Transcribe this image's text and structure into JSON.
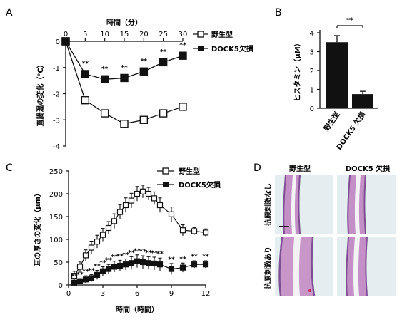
{
  "panels": {
    "A": "A",
    "B": "B",
    "C": "C",
    "D": "D"
  },
  "legend": {
    "wt": "野生型",
    "ko": "DOCK5欠損"
  },
  "colors": {
    "ink": "#111111",
    "tissue_bg": "#dfe9ec",
    "tissue_pink": "#c795c6",
    "tissue_purple": "#8b5a9a",
    "tissue_white": "#eef1f4"
  },
  "chart_data": [
    {
      "id": "A",
      "type": "line",
      "title": "時間（分）",
      "xlabel": "時間（分）",
      "ylabel": "直腸温の変化（℃）",
      "x_ticks": [
        0,
        5,
        10,
        15,
        20,
        25,
        30
      ],
      "y_ticks": [
        0,
        -1,
        -2,
        -3,
        -4
      ],
      "xlim": [
        0,
        30
      ],
      "ylim": [
        -4,
        0
      ],
      "x_axis_position": "top",
      "series": [
        {
          "name": "野生型",
          "marker": "open-square",
          "x": [
            0,
            5,
            10,
            15,
            20,
            25,
            30
          ],
          "y": [
            0,
            -2.25,
            -2.75,
            -3.15,
            -3.0,
            -2.75,
            -2.5
          ],
          "err": [
            0,
            0.12,
            0.12,
            0.12,
            0.12,
            0.12,
            0.12
          ]
        },
        {
          "name": "DOCK5欠損",
          "marker": "filled-square",
          "x": [
            0,
            5,
            10,
            15,
            20,
            25,
            30
          ],
          "y": [
            0,
            -1.25,
            -1.45,
            -1.4,
            -1.15,
            -0.8,
            -0.55
          ],
          "err": [
            0,
            0.1,
            0.1,
            0.1,
            0.1,
            0.1,
            0.1
          ]
        }
      ],
      "annotations": [
        {
          "x": 5,
          "text": "**"
        },
        {
          "x": 10,
          "text": "**"
        },
        {
          "x": 15,
          "text": "**"
        },
        {
          "x": 20,
          "text": "**"
        },
        {
          "x": 25,
          "text": "**"
        },
        {
          "x": 30,
          "text": "**"
        }
      ]
    },
    {
      "id": "B",
      "type": "bar",
      "categories": [
        "野生型",
        "DOCK5 欠損"
      ],
      "values": [
        3.5,
        0.75
      ],
      "errors": [
        0.35,
        0.15
      ],
      "ylabel": "ヒスタミン（μM）",
      "y_ticks": [
        0,
        1,
        2,
        3,
        4
      ],
      "ylim": [
        0,
        4
      ],
      "significance": "**"
    },
    {
      "id": "C",
      "type": "line",
      "xlabel": "時間（時間）",
      "ylabel": "耳の厚さの変化（μm）",
      "x_ticks": [
        0,
        3,
        6,
        9,
        12
      ],
      "y_ticks": [
        0,
        50,
        100,
        150,
        200,
        250
      ],
      "xlim": [
        0,
        12
      ],
      "ylim": [
        0,
        250
      ],
      "series": [
        {
          "name": "野生型",
          "marker": "open-square",
          "x": [
            0.5,
            1.0,
            1.5,
            2.0,
            2.5,
            3.0,
            3.5,
            4.0,
            4.5,
            5.0,
            5.5,
            6.0,
            6.5,
            7.0,
            7.5,
            8.0,
            9.0,
            10.0,
            11.0,
            12.0
          ],
          "y": [
            20,
            40,
            65,
            82,
            95,
            110,
            125,
            140,
            160,
            175,
            185,
            200,
            205,
            200,
            190,
            175,
            155,
            120,
            118,
            115
          ],
          "err": [
            10,
            12,
            12,
            14,
            14,
            14,
            14,
            16,
            16,
            16,
            16,
            16,
            14,
            14,
            14,
            16,
            16,
            12,
            8,
            8
          ]
        },
        {
          "name": "DOCK5欠損",
          "marker": "filled-square",
          "x": [
            0.5,
            1.0,
            1.5,
            2.0,
            2.5,
            3.0,
            3.5,
            4.0,
            4.5,
            5.0,
            5.5,
            6.0,
            6.5,
            7.0,
            7.5,
            8.0,
            9.0,
            10.0,
            11.0,
            12.0
          ],
          "y": [
            5,
            8,
            12,
            15,
            22,
            30,
            35,
            40,
            42,
            45,
            48,
            52,
            50,
            48,
            47,
            45,
            35,
            38,
            45,
            45
          ],
          "err": [
            5,
            6,
            8,
            8,
            10,
            10,
            10,
            12,
            12,
            12,
            14,
            14,
            14,
            14,
            14,
            14,
            12,
            10,
            8,
            8
          ]
        }
      ],
      "annotations_x": [
        0.5,
        1.0,
        1.5,
        2.0,
        2.5,
        3.0,
        3.5,
        4.0,
        4.5,
        5.0,
        5.5,
        6.0,
        6.5,
        7.0,
        7.5,
        8.0,
        9.0,
        10.0,
        11.0,
        12.0
      ],
      "annotation_text": "**"
    }
  ],
  "panel_d": {
    "col_labels": [
      "野生型",
      "DOCK5 欠損"
    ],
    "row_labels": [
      "抗原刺激なし",
      "抗原刺激あり"
    ]
  }
}
